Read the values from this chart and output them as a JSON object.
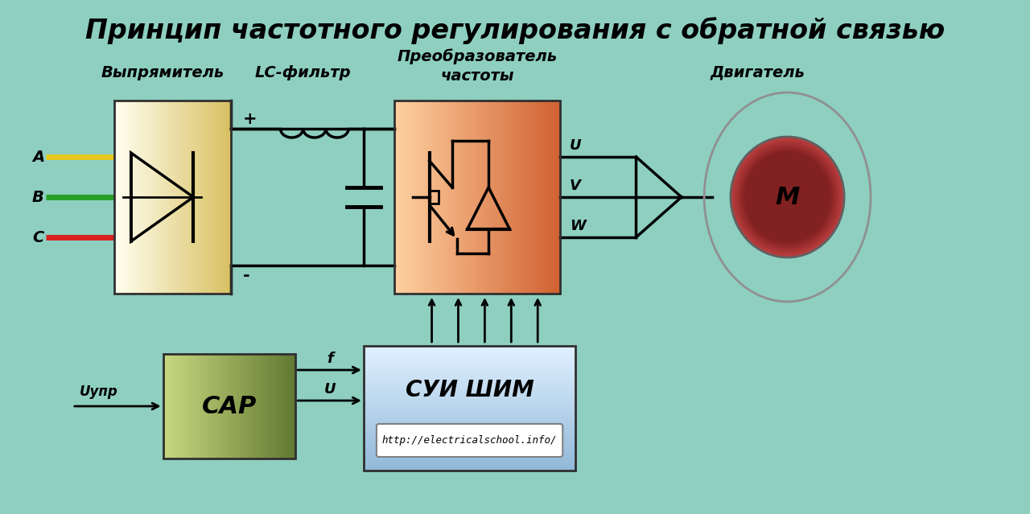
{
  "title": "Принцип частотного регулирования с обратной связью",
  "bg_color": "#8ECFC0",
  "label_rectifier": "Выпрямитель",
  "label_lc": "LC-фильтр",
  "label_converter": "Преобразователь\nчастоты",
  "label_motor": "Двигатель",
  "label_sar": "САР",
  "label_sui": "СУИ ШИМ",
  "label_uupr": "Uупр",
  "label_A": "A",
  "label_B": "B",
  "label_C": "C",
  "label_U": "U",
  "label_V": "V",
  "label_W": "W",
  "label_f": "f",
  "label_U2": "U",
  "label_plus": "+",
  "label_minus": "-",
  "label_M": "M",
  "url": "http://electricalschool.info/",
  "color_A": "#E8C820",
  "color_B": "#28A028",
  "color_C": "#D82020",
  "rectifier_color1": "#FFFFF0",
  "rectifier_color2": "#D8C060",
  "converter_color1": "#FFD0A0",
  "converter_color2": "#D06030",
  "sar_color1": "#C8D880",
  "sar_color2": "#607830",
  "sui_color1": "#E0F0FF",
  "sui_color2": "#90B8D8",
  "motor_outer_color1": "#F0D0D0",
  "motor_outer_color2": "#D09090",
  "motor_inner_color1": "#C04040",
  "motor_inner_color2": "#802020"
}
